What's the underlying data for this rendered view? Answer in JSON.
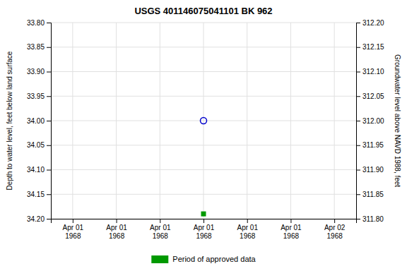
{
  "chart_data": {
    "type": "scatter",
    "title": "USGS 401146075041101 BK   962",
    "y_label": "Depth to water level, feet below land surface",
    "y2_label": "Groundwater level above NAVD 1988, feet",
    "categories": [
      "Apr 01\n1968",
      "Apr 01\n1968",
      "Apr 01\n1968",
      "Apr 01\n1968",
      "Apr 01\n1968",
      "Apr 01\n1968",
      "Apr 02\n1968"
    ],
    "series": [
      {
        "color": "#0000cc",
        "marker": "circle-open",
        "values": [
          null,
          null,
          null,
          34.0,
          null,
          null,
          null
        ]
      },
      {
        "name": "Period of approved data",
        "color": "#009900",
        "marker": "square",
        "values": [
          null,
          null,
          null,
          34.19,
          null,
          null,
          null
        ]
      }
    ],
    "ylim": [
      34.2,
      33.8
    ],
    "yticks": [
      {
        "value": 33.8,
        "label": "33.80"
      },
      33.85,
      {
        "value": 33.9,
        "label": "33.90"
      },
      33.95,
      {
        "value": 34.0,
        "label": "34.00"
      },
      34.05,
      {
        "value": 34.1,
        "label": "34.10"
      },
      34.15,
      {
        "value": 34.2,
        "label": "34.20"
      }
    ],
    "y2lim": [
      311.8,
      312.2
    ],
    "y2ticks": [
      {
        "value": 311.8,
        "label": "311.80"
      },
      311.85,
      {
        "value": 311.9,
        "label": "311.90"
      },
      311.95,
      {
        "value": 312.0,
        "label": "312.00"
      },
      312.05,
      {
        "value": 312.1,
        "label": "312.10"
      },
      312.15,
      {
        "value": 312.2,
        "label": "312.20"
      }
    ],
    "grid": true,
    "legend": "bottom"
  }
}
